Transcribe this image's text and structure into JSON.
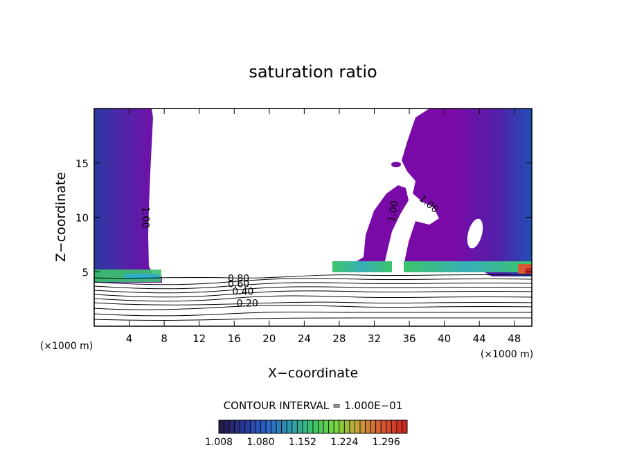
{
  "chart_data": {
    "type": "heatmap",
    "title": "saturation ratio",
    "xlabel": "X−coordinate",
    "ylabel": "Z−coordinate",
    "x_unit": "(×1000 m)",
    "z_unit": "(×1000 m)",
    "xlim": [
      0,
      50
    ],
    "ylim": [
      0,
      20
    ],
    "x_ticks": [
      4,
      8,
      12,
      16,
      20,
      24,
      28,
      32,
      36,
      40,
      44,
      48
    ],
    "y_ticks": [
      5,
      10,
      15
    ],
    "contour_interval_text": "CONTOUR INTERVAL = 1.000E−01",
    "colorbar": {
      "min": 1.008,
      "max": 1.332,
      "tick_labels": [
        "1.008",
        "1.080",
        "1.152",
        "1.224",
        "1.296"
      ],
      "colors": [
        "#241a4e",
        "#2a3a9a",
        "#2c64c8",
        "#2f9ab0",
        "#3cc46a",
        "#7ad640",
        "#c8a03c",
        "#d85a32",
        "#c8281e"
      ]
    },
    "contour_labels": [
      {
        "text": "1.00",
        "x": 5.5,
        "z": 10.0,
        "rotate": 90
      },
      {
        "text": "1.00",
        "x": 34.5,
        "z": 10.5,
        "rotate": -80
      },
      {
        "text": "1.00",
        "x": 38.0,
        "z": 11.0,
        "rotate": 40
      },
      {
        "text": "0.80",
        "x": 16.5,
        "z": 4.1,
        "rotate": 0
      },
      {
        "text": "0.60",
        "x": 16.5,
        "z": 3.6,
        "rotate": 0
      },
      {
        "text": "0.40",
        "x": 17.0,
        "z": 2.9,
        "rotate": 0
      },
      {
        "text": "0.20",
        "x": 17.5,
        "z": 1.8,
        "rotate": 0
      }
    ],
    "supersaturated_regions": [
      {
        "name": "left-column",
        "x_range": [
          0,
          7.5
        ],
        "z_range": [
          4.3,
          20
        ],
        "value": 1.008
      },
      {
        "name": "central-plume",
        "x_range": [
          27.5,
          34.0
        ],
        "z_range": [
          5.0,
          13.5
        ],
        "value": 1.008
      },
      {
        "name": "right-column",
        "x_range": [
          35.5,
          50
        ],
        "z_range": [
          5.0,
          20
        ],
        "value": 1.008
      }
    ],
    "subsaturated_contour_levels": [
      0.2,
      0.4,
      0.6,
      0.8
    ]
  }
}
